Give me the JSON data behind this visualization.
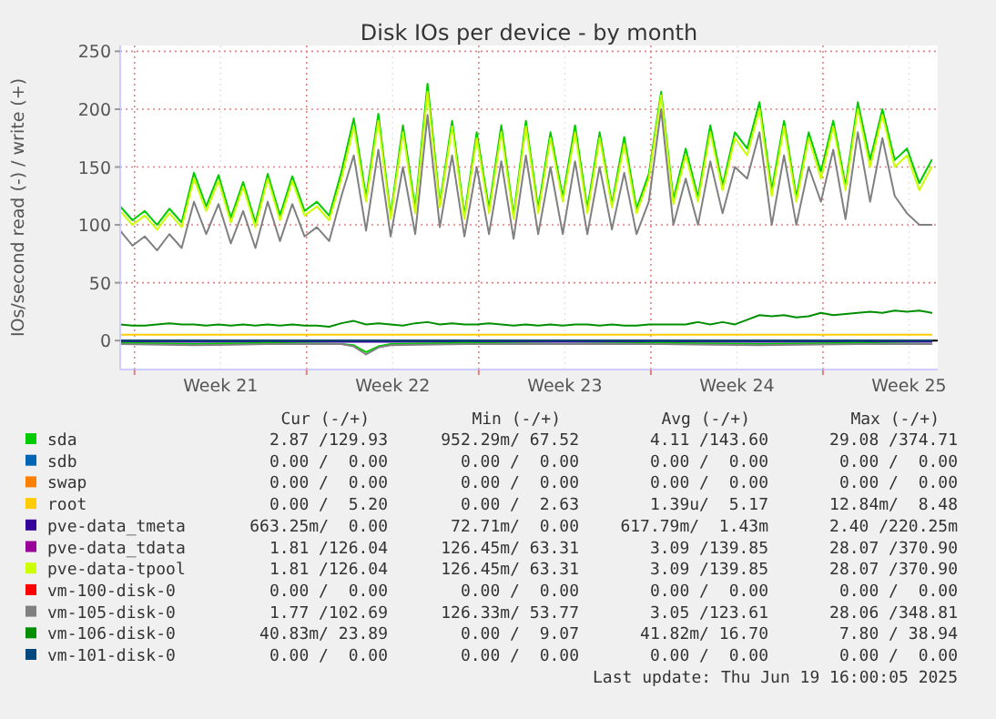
{
  "chart_data": {
    "type": "line",
    "title": "Disk IOs per device - by month",
    "ylabel": "IOs/second read (-) / write (+)",
    "x": [
      "2025-05-18T10:00",
      "2025-05-18T22:00",
      "2025-05-19T10:00",
      "2025-05-19T22:00",
      "2025-05-20T10:00",
      "2025-05-20T22:00",
      "2025-05-21T10:00",
      "2025-05-21T22:00",
      "2025-05-22T10:00",
      "2025-05-22T22:00",
      "2025-05-23T10:00",
      "2025-05-23T22:00",
      "2025-05-24T10:00",
      "2025-05-24T22:00",
      "2025-05-25T10:00",
      "2025-05-25T22:00",
      "2025-05-26T10:00",
      "2025-05-26T22:00",
      "2025-05-27T10:00",
      "2025-05-27T22:00",
      "2025-05-28T10:00",
      "2025-05-28T22:00",
      "2025-05-29T10:00",
      "2025-05-29T22:00",
      "2025-05-30T10:00",
      "2025-05-30T22:00",
      "2025-05-31T10:00",
      "2025-05-31T22:00",
      "2025-06-01T10:00",
      "2025-06-01T22:00",
      "2025-06-02T10:00",
      "2025-06-02T22:00",
      "2025-06-03T10:00",
      "2025-06-03T22:00",
      "2025-06-04T10:00",
      "2025-06-04T22:00",
      "2025-06-05T10:00",
      "2025-06-05T22:00",
      "2025-06-06T10:00",
      "2025-06-06T22:00",
      "2025-06-07T10:00",
      "2025-06-07T22:00",
      "2025-06-08T10:00",
      "2025-06-08T22:00",
      "2025-06-09T10:00",
      "2025-06-09T22:00",
      "2025-06-10T10:00",
      "2025-06-10T22:00",
      "2025-06-11T10:00",
      "2025-06-11T22:00",
      "2025-06-12T10:00",
      "2025-06-12T22:00",
      "2025-06-13T10:00",
      "2025-06-13T22:00",
      "2025-06-14T10:00",
      "2025-06-14T22:00",
      "2025-06-15T10:00",
      "2025-06-15T22:00",
      "2025-06-16T10:00",
      "2025-06-16T22:00",
      "2025-06-17T10:00",
      "2025-06-17T22:00",
      "2025-06-18T10:00",
      "2025-06-18T22:00",
      "2025-06-19T10:00",
      "2025-06-19T22:00",
      "2025-06-20T10:00"
    ],
    "xlim": [
      "2025-05-18T10:00",
      "2025-06-20T16:00"
    ],
    "xticks": [
      {
        "value": "2025-05-19",
        "label": null
      },
      {
        "value": "2025-05-22T12:00",
        "label": "Week 21"
      },
      {
        "value": "2025-05-26",
        "label": null
      },
      {
        "value": "2025-05-29T12:00",
        "label": "Week 22"
      },
      {
        "value": "2025-06-02",
        "label": null
      },
      {
        "value": "2025-06-05T12:00",
        "label": "Week 23"
      },
      {
        "value": "2025-06-09",
        "label": null
      },
      {
        "value": "2025-06-12T12:00",
        "label": "Week 24"
      },
      {
        "value": "2025-06-16",
        "label": null
      },
      {
        "value": "2025-06-19T12:00",
        "label": "Week 25"
      }
    ],
    "ylim": [
      -25,
      255
    ],
    "yticks": [
      0,
      50,
      100,
      150,
      200,
      250
    ],
    "grid": true,
    "legend": "bottom",
    "ref_lines": [
      {
        "axis": "y",
        "value": 0,
        "color": "#000000"
      }
    ],
    "series": [
      {
        "name": "sda",
        "color": "#00cc00",
        "values": [
          116,
          104,
          112,
          100,
          114,
          102,
          145,
          116,
          143,
          106,
          137,
          102,
          144,
          108,
          142,
          112,
          120,
          108,
          146,
          192,
          124,
          196,
          108,
          186,
          114,
          222,
          118,
          190,
          108,
          180,
          114,
          186,
          108,
          190,
          114,
          180,
          124,
          186,
          114,
          180,
          118,
          176,
          114,
          144,
          215,
          122,
          166,
          124,
          186,
          134,
          180,
          166,
          206,
          130,
          190,
          124,
          180,
          146,
          190,
          134,
          206,
          156,
          200,
          156,
          166,
          136,
          156
        ]
      },
      {
        "name": "sdb",
        "color": "#0066b3",
        "values": [
          null,
          null,
          null,
          null,
          null,
          null,
          null,
          null,
          null,
          null,
          null,
          null,
          null,
          null,
          null,
          null,
          null,
          null,
          null,
          null,
          null,
          null,
          null,
          null,
          null,
          null,
          null,
          null,
          null,
          null,
          null,
          null,
          null,
          null,
          null,
          null,
          null,
          null,
          null,
          null,
          null,
          null,
          null,
          null,
          null,
          null,
          null,
          null,
          null,
          null,
          null,
          null,
          null,
          null,
          null,
          null,
          null,
          null,
          null,
          null,
          null,
          null,
          null,
          null,
          null,
          null,
          null
        ]
      },
      {
        "name": "swap",
        "color": "#ff8000",
        "values": [
          null,
          null,
          null,
          null,
          null,
          null,
          null,
          null,
          null,
          null,
          null,
          null,
          null,
          null,
          null,
          null,
          null,
          null,
          null,
          null,
          null,
          null,
          null,
          null,
          null,
          null,
          null,
          null,
          null,
          null,
          null,
          null,
          null,
          null,
          null,
          null,
          null,
          null,
          null,
          null,
          null,
          null,
          null,
          null,
          null,
          null,
          null,
          null,
          null,
          null,
          null,
          null,
          null,
          null,
          null,
          null,
          null,
          null,
          null,
          null,
          null,
          null,
          null,
          null,
          null,
          null,
          null
        ]
      },
      {
        "name": "root",
        "color": "#ffcc00",
        "x": [
          "2025-05-18T10:00",
          "2025-06-20T10:00"
        ],
        "values": [
          5,
          5
        ]
      },
      {
        "name": "pve-data_tmeta",
        "color": "#330099",
        "x": [
          "2025-05-18T10:00",
          "2025-06-20T10:00"
        ],
        "values": [
          -1,
          -1
        ]
      },
      {
        "name": "pve-data_tdata",
        "color": "#990099",
        "values": [
          null,
          null,
          null,
          null,
          null,
          null,
          null,
          null,
          null,
          null,
          null,
          null,
          null,
          null,
          null,
          null,
          null,
          null,
          null,
          null,
          null,
          null,
          null,
          null,
          null,
          null,
          null,
          null,
          null,
          null,
          null,
          null,
          null,
          null,
          null,
          null,
          null,
          null,
          null,
          null,
          null,
          null,
          null,
          null,
          null,
          null,
          null,
          null,
          null,
          null,
          null,
          null,
          null,
          null,
          null,
          null,
          null,
          null,
          null,
          null,
          null,
          null,
          null,
          null,
          null,
          null,
          null
        ]
      },
      {
        "name": "pve-data-tpool",
        "color": "#ccff00",
        "values": [
          112,
          100,
          108,
          96,
          110,
          98,
          140,
          112,
          138,
          102,
          133,
          98,
          140,
          104,
          138,
          108,
          116,
          104,
          140,
          185,
          120,
          190,
          105,
          180,
          110,
          215,
          115,
          185,
          105,
          175,
          110,
          180,
          105,
          185,
          110,
          175,
          120,
          180,
          110,
          175,
          115,
          170,
          110,
          140,
          212,
          118,
          160,
          120,
          180,
          130,
          175,
          160,
          200,
          125,
          185,
          120,
          175,
          140,
          185,
          130,
          200,
          150,
          195,
          150,
          160,
          130,
          150
        ]
      },
      {
        "name": "vm-100-disk-0",
        "color": "#ff0000",
        "values": [
          null,
          null,
          null,
          null,
          null,
          null,
          null,
          null,
          null,
          null,
          null,
          null,
          null,
          null,
          null,
          null,
          null,
          null,
          null,
          null,
          null,
          null,
          null,
          null,
          null,
          null,
          null,
          null,
          null,
          null,
          null,
          null,
          null,
          null,
          null,
          null,
          null,
          null,
          null,
          null,
          null,
          null,
          null,
          null,
          null,
          null,
          null,
          null,
          null,
          null,
          null,
          null,
          null,
          null,
          null,
          null,
          null,
          null,
          null,
          null,
          null,
          null,
          null,
          null,
          null,
          null,
          null
        ]
      },
      {
        "name": "vm-105-disk-0",
        "color": "#808080",
        "values": [
          95,
          82,
          90,
          78,
          92,
          80,
          120,
          92,
          118,
          84,
          112,
          80,
          120,
          86,
          118,
          90,
          98,
          86,
          125,
          160,
          95,
          165,
          90,
          150,
          92,
          195,
          98,
          160,
          90,
          150,
          92,
          155,
          88,
          160,
          92,
          150,
          92,
          155,
          92,
          150,
          96,
          145,
          92,
          120,
          200,
          100,
          140,
          100,
          155,
          110,
          150,
          140,
          180,
          100,
          160,
          100,
          150,
          120,
          165,
          105,
          180,
          120,
          175,
          125,
          110,
          100,
          100
        ]
      },
      {
        "name": "vm-106-disk-0",
        "color": "#008f00",
        "values": [
          14,
          13,
          13,
          14,
          15,
          14,
          14,
          13,
          14,
          13,
          14,
          13,
          14,
          13,
          14,
          13,
          13,
          12,
          15,
          17,
          14,
          15,
          14,
          13,
          15,
          16,
          14,
          15,
          14,
          14,
          15,
          14,
          13,
          14,
          13,
          14,
          13,
          14,
          14,
          13,
          14,
          13,
          13,
          14,
          14,
          14,
          14,
          16,
          14,
          16,
          14,
          18,
          22,
          21,
          22,
          20,
          21,
          24,
          22,
          23,
          24,
          25,
          24,
          26,
          25,
          26,
          24
        ]
      },
      {
        "name": "vm-101-disk-0",
        "color": "#00487d",
        "x": [
          "2025-05-18T10:00",
          "2025-06-20T10:00"
        ],
        "values": [
          0,
          0
        ]
      },
      {
        "color": "#00cc00",
        "x": [
          "2025-05-18T10:00",
          "2025-05-21T10:00",
          "2025-05-24T10:00",
          "2025-05-27T10:00",
          "2025-05-27T22:00",
          "2025-05-28T10:00",
          "2025-05-28T22:00",
          "2025-05-29T10:00",
          "2025-06-01T10:00",
          "2025-06-05T10:00",
          "2025-06-09T10:00",
          "2025-06-13T10:00",
          "2025-06-17T10:00",
          "2025-06-20T10:00"
        ],
        "values": [
          -2,
          -3,
          -2,
          -3,
          -4,
          -10,
          -5,
          -3,
          -2,
          -3,
          -2,
          -3,
          -2,
          -3
        ]
      },
      {
        "color": "#808080",
        "x": [
          "2025-05-18T10:00",
          "2025-05-21T10:00",
          "2025-05-24T10:00",
          "2025-05-27T10:00",
          "2025-05-27T22:00",
          "2025-05-28T10:00",
          "2025-05-28T22:00",
          "2025-05-29T10:00",
          "2025-06-01T10:00",
          "2025-06-05T10:00",
          "2025-06-09T10:00",
          "2025-06-13T10:00",
          "2025-06-17T10:00",
          "2025-06-20T10:00"
        ],
        "values": [
          -3,
          -4,
          -3,
          -3,
          -5,
          -12,
          -6,
          -4,
          -3,
          -3,
          -3,
          -4,
          -3,
          -3
        ]
      }
    ],
    "annotations": [
      "Cur (-/+)",
      "Min (-/+)",
      "Avg (-/+)",
      "Max (-/+)",
      "2.87 /129.93",
      "952.29m/ 67.52",
      "4.11 /143.60",
      "29.08 /374.71",
      "0.00 /  0.00",
      "0.00 /  0.00",
      "0.00 /  0.00",
      "0.00 /  0.00",
      "0.00 /  0.00",
      "0.00 /  0.00",
      "0.00 /  0.00",
      "0.00 /  0.00",
      "0.00 /  5.20",
      "0.00 /  2.63",
      "1.39u/  5.17",
      "12.84m/  8.48",
      "663.25m/  0.00",
      "72.71m/  0.00",
      "617.79m/  1.43m",
      "2.40 /220.25m",
      "1.81 /126.04",
      "126.45m/ 63.31",
      "3.09 /139.85",
      "28.07 /370.90",
      "1.81 /126.04",
      "126.45m/ 63.31",
      "3.09 /139.85",
      "28.07 /370.90",
      "0.00 /  0.00",
      "0.00 /  0.00",
      "0.00 /  0.00",
      "0.00 /  0.00",
      "1.77 /102.69",
      "126.33m/ 53.77",
      "3.05 /123.61",
      "28.06 /348.81",
      "40.83m/ 23.89",
      "0.00 /  9.07",
      "41.82m/ 16.70",
      "7.80 / 38.94",
      "0.00 /  0.00",
      "0.00 /  0.00",
      "0.00 /  0.00",
      "0.00 /  0.00",
      "Last update: Thu Jun 19 16:00:05 2025"
    ]
  }
}
